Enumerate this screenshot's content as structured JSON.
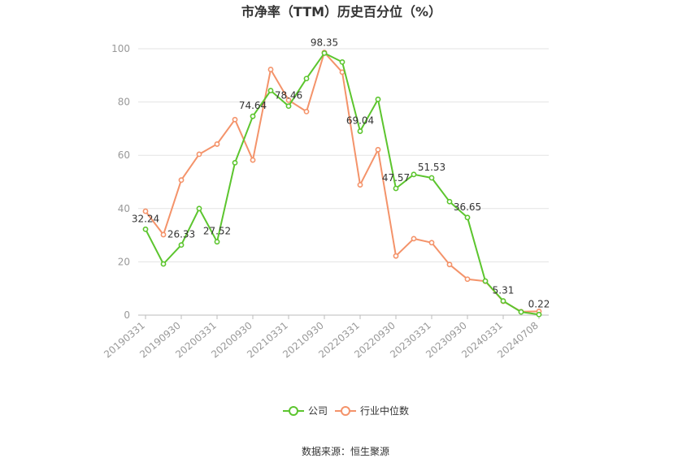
{
  "chart_data": {
    "type": "line",
    "title": "市净率（TTM）历史百分位（%）",
    "xlabel": "",
    "ylabel": "",
    "ylim": [
      0,
      100
    ],
    "yticks": [
      0,
      20,
      40,
      60,
      80,
      100
    ],
    "x": [
      "20190331",
      "20190630",
      "20190930",
      "20191231",
      "20200331",
      "20200630",
      "20200930",
      "20201231",
      "20210331",
      "20210630",
      "20210930",
      "20211231",
      "20220331",
      "20220630",
      "20220930",
      "20221231",
      "20230331",
      "20230630",
      "20230930",
      "20231231",
      "20240331",
      "20240630",
      "20240708"
    ],
    "xtick_labels": [
      "20190331",
      "20190930",
      "20200331",
      "20200930",
      "20210331",
      "20210930",
      "20220331",
      "20220930",
      "20230331",
      "20230930",
      "20240331",
      "20240708"
    ],
    "grid": true,
    "legend_position": "bottom",
    "series": [
      {
        "name": "公司",
        "color": "#5cc52e",
        "values": [
          32.24,
          19.2,
          26.33,
          40.0,
          27.52,
          57.2,
          74.64,
          84.3,
          78.46,
          88.8,
          98.35,
          95.0,
          69.04,
          81.0,
          47.57,
          52.8,
          51.53,
          42.6,
          36.65,
          12.8,
          5.31,
          1.2,
          0.22
        ],
        "labels": {
          "0": "32.24",
          "2": "26.33",
          "4": "27.52",
          "6": "74.64",
          "8": "78.46",
          "10": "98.35",
          "12": "69.04",
          "14": "47.57",
          "16": "51.53",
          "18": "36.65",
          "20": "5.31",
          "22": "0.22"
        }
      },
      {
        "name": "行业中位数",
        "color": "#f4936a",
        "values": [
          39.0,
          30.2,
          50.7,
          60.4,
          64.2,
          73.4,
          58.2,
          92.2,
          80.7,
          76.4,
          98.6,
          91.2,
          48.9,
          62.1,
          22.2,
          28.7,
          27.2,
          19.0,
          13.5,
          12.7,
          5.2,
          1.3,
          1.4
        ]
      }
    ]
  },
  "source_text": "数据来源：恒生聚源"
}
